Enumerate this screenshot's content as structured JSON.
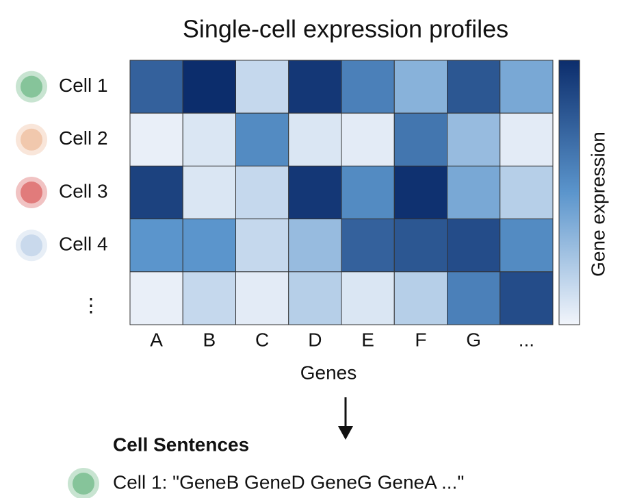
{
  "chart_data": {
    "type": "heatmap",
    "title": "Single-cell expression profiles",
    "rows": [
      "Cell 1",
      "Cell 2",
      "Cell 3",
      "Cell 4",
      "⋮"
    ],
    "row_markers": [
      "#86c49a",
      "#f1c8ad",
      "#e17b7b",
      "#c9d9ec"
    ],
    "columns": [
      "A",
      "B",
      "C",
      "D",
      "E",
      "F",
      "G",
      "..."
    ],
    "x_label": "Genes",
    "colorbar_label": "Gene expression",
    "zlim": [
      0,
      1
    ],
    "colormap": [
      "#f2f5fb",
      "#5b95cc",
      "#0c2d6c"
    ],
    "values": [
      [
        0.75,
        1.0,
        0.15,
        0.95,
        0.6,
        0.35,
        0.8,
        0.4
      ],
      [
        0.03,
        0.08,
        0.55,
        0.08,
        0.05,
        0.65,
        0.3,
        0.05
      ],
      [
        0.9,
        0.08,
        0.15,
        0.95,
        0.55,
        0.98,
        0.4,
        0.2
      ],
      [
        0.5,
        0.5,
        0.15,
        0.3,
        0.75,
        0.8,
        0.85,
        0.55
      ],
      [
        0.03,
        0.15,
        0.05,
        0.2,
        0.08,
        0.2,
        0.6,
        0.85
      ]
    ],
    "sentences_title": "Cell Sentences",
    "sentence": {
      "marker_color": "#86c49a",
      "text": "Cell 1: \"GeneB GeneD GeneG GeneA ...\""
    }
  }
}
